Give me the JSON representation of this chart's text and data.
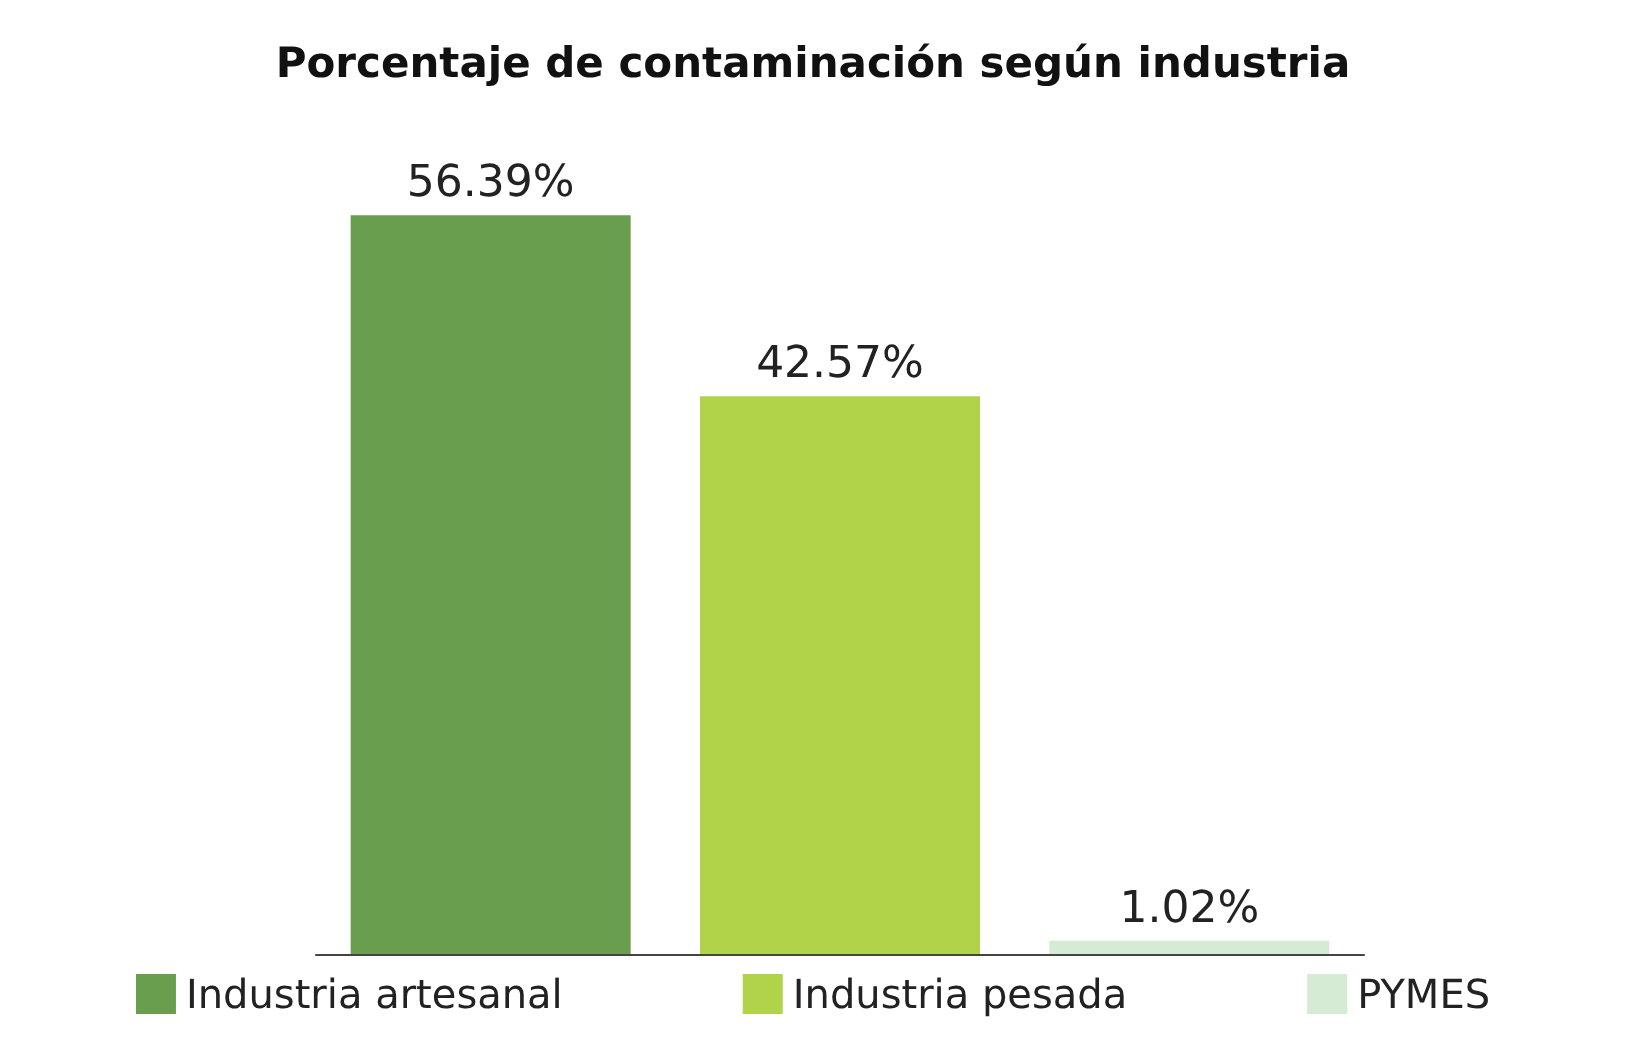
{
  "chart_data": {
    "type": "bar",
    "title": "Porcentaje de contaminación según industria",
    "categories": [
      null,
      null,
      null
    ],
    "series": [
      {
        "name": "Industria artesanal",
        "color": "#6a9e4f",
        "values": [
          56.39,
          null,
          null
        ],
        "value_labels": [
          "56.39%",
          null,
          null
        ]
      },
      {
        "name": "Industria pesada",
        "color": "#b1d34a",
        "values": [
          null,
          42.57,
          null
        ],
        "value_labels": [
          null,
          "42.57%",
          null
        ]
      },
      {
        "name": "PYMES",
        "color": "#d6ebd4",
        "values": [
          null,
          null,
          1.02
        ],
        "value_labels": [
          null,
          null,
          "1.02%"
        ]
      }
    ],
    "stacked": true,
    "legend": "bottom",
    "tick_labels": false
  }
}
